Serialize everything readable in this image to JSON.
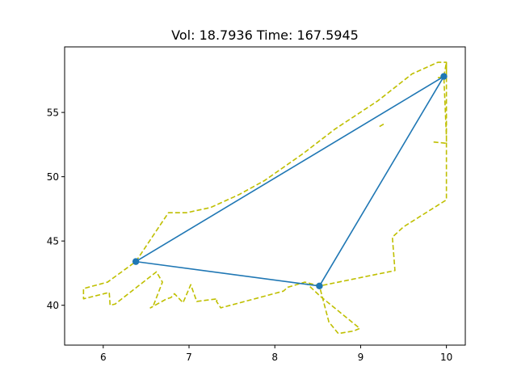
{
  "chart_data": {
    "type": "line",
    "title": "Vol:   18.7936 Time:  167.5945",
    "xlabel": "",
    "ylabel": "",
    "xlim": [
      5.55,
      10.22
    ],
    "ylim": [
      36.9,
      60.1
    ],
    "grid": false,
    "x_ticks": [
      6,
      7,
      8,
      9,
      10
    ],
    "y_ticks": [
      40,
      45,
      50,
      55
    ],
    "x_tick_labels": [
      "6",
      "7",
      "8",
      "9",
      "10"
    ],
    "y_tick_labels": [
      "40",
      "45",
      "50",
      "55"
    ],
    "series": [
      {
        "style": "solid",
        "color": "#1f77b4",
        "marker": "circle",
        "x": [
          6.38,
          8.52,
          9.97,
          6.38
        ],
        "y": [
          43.4,
          41.5,
          57.8,
          43.4
        ]
      },
      {
        "style": "dashed",
        "color": "#bfbf00",
        "marker": "none",
        "x": [
          9.22,
          9.27,
          9.27
        ],
        "y": [
          53.9,
          54.1,
          54.1
        ]
      },
      {
        "style": "dashed",
        "color": "#bfbf00",
        "marker": "none",
        "x": [
          9.85,
          10.0,
          10.0,
          9.97,
          10.0,
          10.0,
          9.5,
          9.37,
          9.4,
          8.52,
          8.35,
          8.15,
          8.1,
          7.37,
          7.32,
          7.33,
          7.09,
          7.02,
          6.93,
          6.83,
          6.79,
          6.74,
          6.55,
          6.58,
          6.69,
          6.62,
          6.14,
          6.08,
          6.07,
          5.77,
          5.77,
          6.05,
          6.38,
          6.76,
          6.97,
          7.25,
          7.58,
          7.88,
          8.33,
          8.7,
          9.2,
          9.6,
          9.9,
          9.98,
          10.0,
          10.0,
          9.9
        ],
        "y": [
          52.7,
          52.6,
          53.1,
          57.8,
          58.9,
          48.2,
          46.1,
          45.3,
          42.7,
          41.5,
          41.8,
          41.4,
          41.1,
          39.8,
          40.3,
          40.5,
          40.3,
          41.6,
          40.2,
          40.9,
          40.6,
          40.5,
          39.8,
          39.9,
          41.8,
          42.6,
          40.1,
          40.0,
          41.0,
          40.5,
          41.3,
          41.8,
          43.4,
          47.2,
          47.2,
          47.6,
          48.6,
          49.7,
          51.8,
          53.7,
          55.9,
          58.0,
          58.9,
          58.9,
          58.9,
          57.8,
          57.7
        ]
      },
      {
        "style": "dashed",
        "color": "#bfbf00",
        "marker": "none",
        "x": [
          8.48,
          8.52,
          8.63,
          8.74,
          8.92,
          8.99,
          8.53,
          8.37
        ],
        "y": [
          41.6,
          41.5,
          38.7,
          37.8,
          38.0,
          38.2,
          40.7,
          41.7
        ]
      }
    ]
  }
}
